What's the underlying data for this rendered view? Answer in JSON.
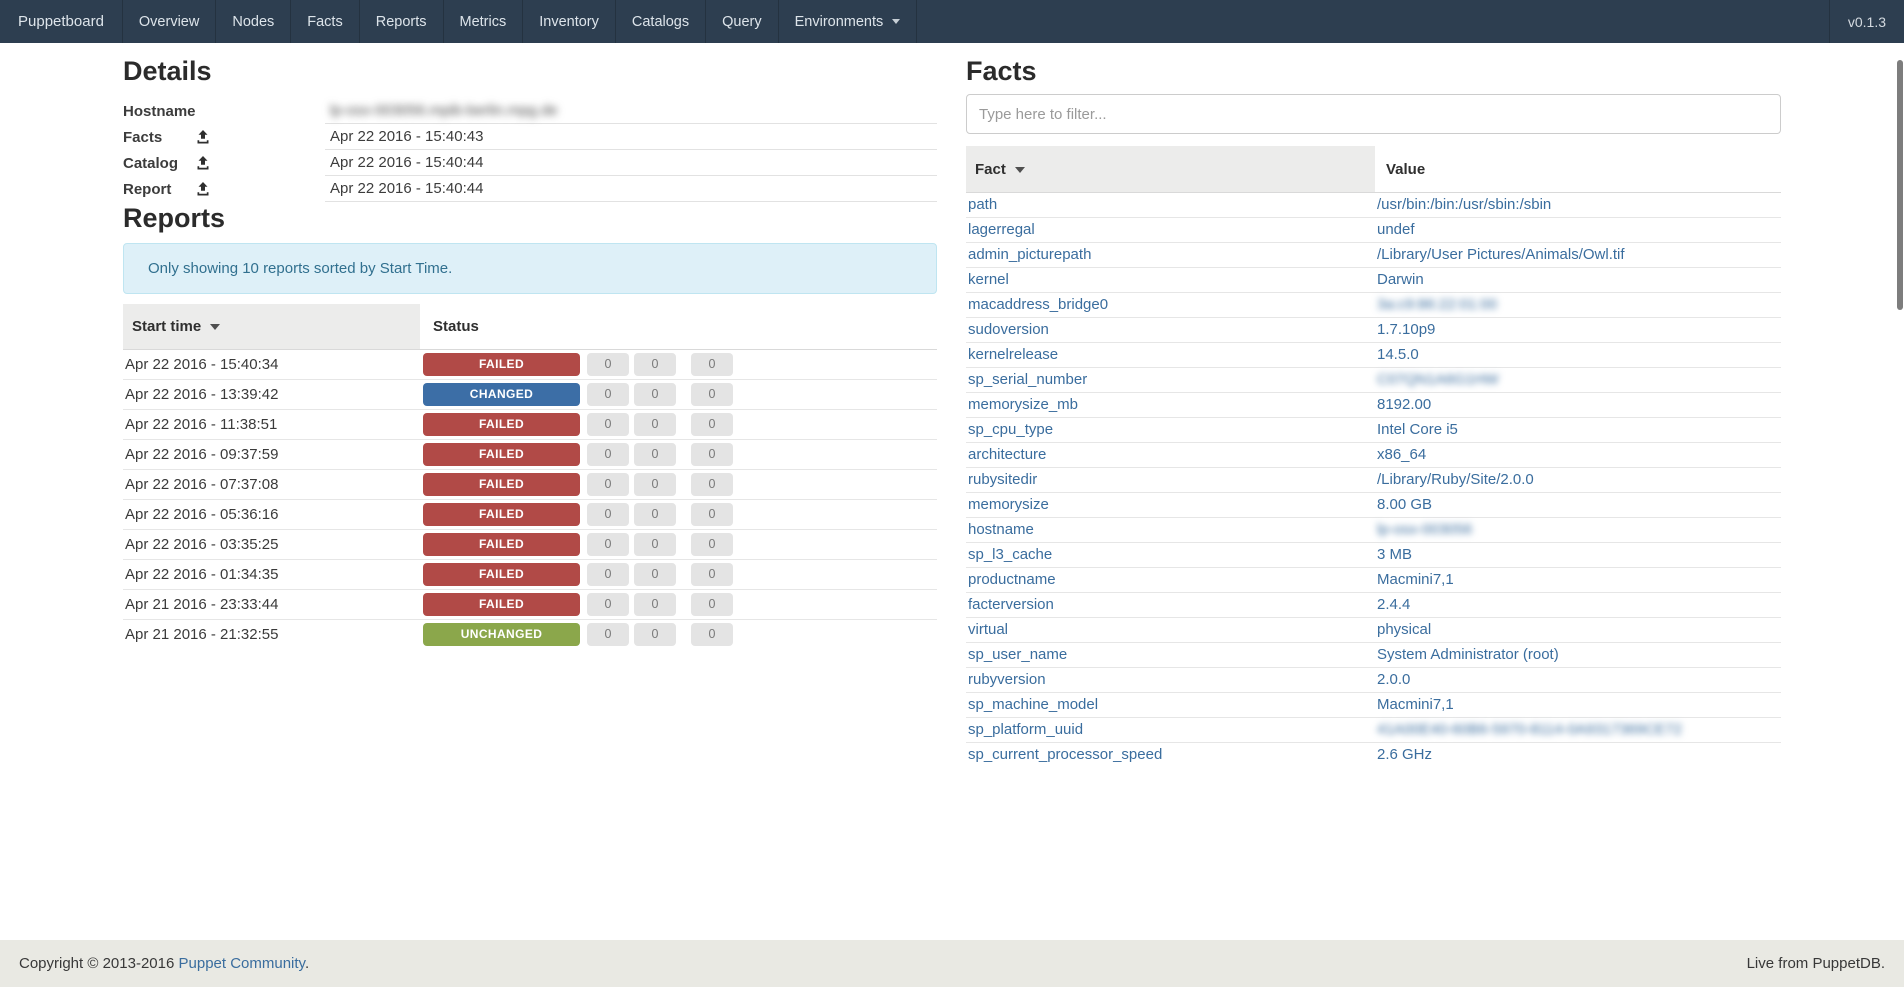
{
  "navbar": {
    "brand": "Puppetboard",
    "items": [
      "Overview",
      "Nodes",
      "Facts",
      "Reports",
      "Metrics",
      "Inventory",
      "Catalogs",
      "Query"
    ],
    "environments_label": "Environments",
    "version": "v0.1.3",
    "background_color": "#2d3e50"
  },
  "details": {
    "title": "Details",
    "rows": [
      {
        "label": "Hostname",
        "value": "lp-osx-003056.mpib-berlin.mpg.de",
        "blurred": true,
        "upload_icon": false
      },
      {
        "label": "Facts",
        "value": "Apr 22 2016 - 15:40:43",
        "blurred": false,
        "upload_icon": true
      },
      {
        "label": "Catalog",
        "value": "Apr 22 2016 - 15:40:44",
        "blurred": false,
        "upload_icon": true
      },
      {
        "label": "Report",
        "value": "Apr 22 2016 - 15:40:44",
        "blurred": false,
        "upload_icon": true
      }
    ]
  },
  "reports": {
    "title": "Reports",
    "notice": "Only showing 10 reports sorted by Start Time.",
    "columns": {
      "start_time": "Start time",
      "status": "Status"
    },
    "sorted_column": "start_time",
    "status_colors": {
      "FAILED": "#b14a47",
      "CHANGED": "#3c6ea6",
      "UNCHANGED": "#8ba74b"
    },
    "rows": [
      {
        "start_time": "Apr 22 2016 - 15:40:34",
        "status": "FAILED",
        "counts": [
          "0",
          "0",
          "0"
        ]
      },
      {
        "start_time": "Apr 22 2016 - 13:39:42",
        "status": "CHANGED",
        "counts": [
          "0",
          "0",
          "0"
        ]
      },
      {
        "start_time": "Apr 22 2016 - 11:38:51",
        "status": "FAILED",
        "counts": [
          "0",
          "0",
          "0"
        ]
      },
      {
        "start_time": "Apr 22 2016 - 09:37:59",
        "status": "FAILED",
        "counts": [
          "0",
          "0",
          "0"
        ]
      },
      {
        "start_time": "Apr 22 2016 - 07:37:08",
        "status": "FAILED",
        "counts": [
          "0",
          "0",
          "0"
        ]
      },
      {
        "start_time": "Apr 22 2016 - 05:36:16",
        "status": "FAILED",
        "counts": [
          "0",
          "0",
          "0"
        ]
      },
      {
        "start_time": "Apr 22 2016 - 03:35:25",
        "status": "FAILED",
        "counts": [
          "0",
          "0",
          "0"
        ]
      },
      {
        "start_time": "Apr 22 2016 - 01:34:35",
        "status": "FAILED",
        "counts": [
          "0",
          "0",
          "0"
        ]
      },
      {
        "start_time": "Apr 21 2016 - 23:33:44",
        "status": "FAILED",
        "counts": [
          "0",
          "0",
          "0"
        ]
      },
      {
        "start_time": "Apr 21 2016 - 21:32:55",
        "status": "UNCHANGED",
        "counts": [
          "0",
          "0",
          "0"
        ]
      }
    ]
  },
  "facts": {
    "title": "Facts",
    "filter_placeholder": "Type here to filter...",
    "columns": {
      "fact": "Fact",
      "value": "Value"
    },
    "sorted_column": "fact",
    "rows": [
      {
        "fact": "path",
        "value": "/usr/bin:/bin:/usr/sbin:/sbin",
        "value_blurred": false
      },
      {
        "fact": "lagerregal",
        "value": "undef",
        "value_blurred": false
      },
      {
        "fact": "admin_picturepath",
        "value": "/Library/User Pictures/Animals/Owl.tif",
        "value_blurred": false
      },
      {
        "fact": "kernel",
        "value": "Darwin",
        "value_blurred": false
      },
      {
        "fact": "macaddress_bridge0",
        "value": "3a:c9:86:22:01:00",
        "value_blurred": true
      },
      {
        "fact": "sudoversion",
        "value": "1.7.10p9",
        "value_blurred": false
      },
      {
        "fact": "kernelrelease",
        "value": "14.5.0",
        "value_blurred": false
      },
      {
        "fact": "sp_serial_number",
        "value": "C07QN1A6G1HW",
        "value_blurred": true
      },
      {
        "fact": "memorysize_mb",
        "value": "8192.00",
        "value_blurred": false
      },
      {
        "fact": "sp_cpu_type",
        "value": "Intel Core i5",
        "value_blurred": false
      },
      {
        "fact": "architecture",
        "value": "x86_64",
        "value_blurred": false
      },
      {
        "fact": "rubysitedir",
        "value": "/Library/Ruby/Site/2.0.0",
        "value_blurred": false
      },
      {
        "fact": "memorysize",
        "value": "8.00 GB",
        "value_blurred": false
      },
      {
        "fact": "hostname",
        "value": "lp-osx-003056",
        "value_blurred": true
      },
      {
        "fact": "sp_l3_cache",
        "value": "3 MB",
        "value_blurred": false
      },
      {
        "fact": "productname",
        "value": "Macmini7,1",
        "value_blurred": false
      },
      {
        "fact": "facterversion",
        "value": "2.4.4",
        "value_blurred": false
      },
      {
        "fact": "virtual",
        "value": "physical",
        "value_blurred": false
      },
      {
        "fact": "sp_user_name",
        "value": "System Administrator (root)",
        "value_blurred": false
      },
      {
        "fact": "rubyversion",
        "value": "2.0.0",
        "value_blurred": false
      },
      {
        "fact": "sp_machine_model",
        "value": "Macmini7,1",
        "value_blurred": false
      },
      {
        "fact": "sp_platform_uuid",
        "value": "41A00E40-60B6-5970-8114-0A9317369CE72",
        "value_blurred": true
      },
      {
        "fact": "sp_current_processor_speed",
        "value": "2.6 GHz",
        "value_blurred": false
      }
    ]
  },
  "footer": {
    "copyright_prefix": "Copyright © 2013-2016 ",
    "community_link": "Puppet Community",
    "copyright_suffix": ".",
    "live_text": "Live from PuppetDB."
  }
}
